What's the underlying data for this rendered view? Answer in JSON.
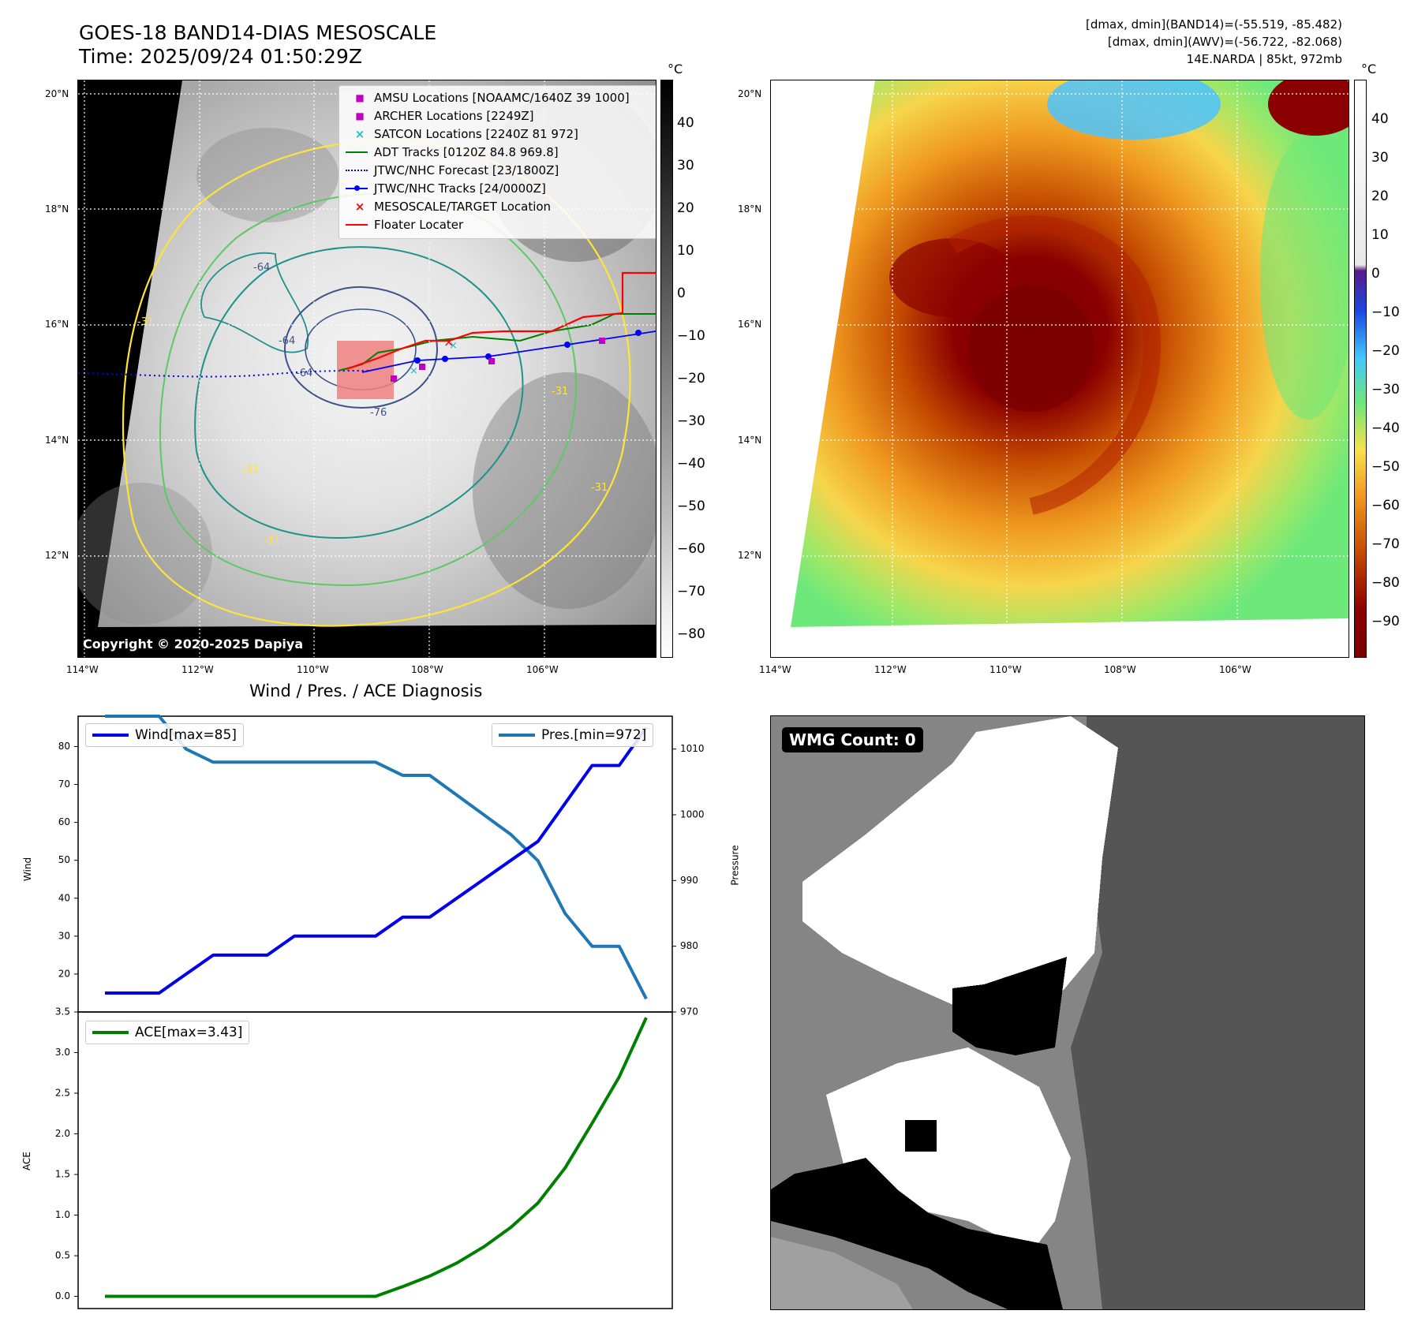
{
  "header": {
    "title": "GOES-18 BAND14-DIAS MESOSCALE",
    "time": "Time: 2025/09/24 01:50:29Z",
    "info": [
      "[dmax, dmin](BAND14)=(-55.519, -85.482)",
      "[dmax, dmin](AWV)=(-56.722, -82.068)",
      "14E.NARDA | 85kt, 972mb"
    ]
  },
  "map_left": {
    "legend": [
      {
        "label": "AMSU Locations [NOAAMC/1640Z 39 1000]",
        "marker": "square",
        "color": "#c000c0"
      },
      {
        "label": "ARCHER Locations [2249Z]",
        "marker": "square",
        "color": "#c000c0"
      },
      {
        "label": "SATCON Locations [2240Z 81 972]",
        "marker": "x",
        "color": "#17becf"
      },
      {
        "label": "ADT Tracks [0120Z 84.8 969.8]",
        "marker": "line",
        "color": "#008000"
      },
      {
        "label": "JTWC/NHC Forecast [23/1800Z]",
        "marker": "dotted",
        "color": "#0000ff"
      },
      {
        "label": "JTWC/NHC Tracks [24/0000Z]",
        "marker": "line-dot",
        "color": "#0000ff"
      },
      {
        "label": "MESOSCALE/TARGET Location",
        "marker": "x",
        "color": "#ff0000"
      },
      {
        "label": "Floater Locater",
        "marker": "line",
        "color": "#ff0000"
      }
    ],
    "copyright": "Copyright © 2020-2025 Dapiya",
    "contour_labels": [
      "-64",
      "-64",
      "-64",
      "-76",
      "-31",
      "-31",
      "-31",
      "-31",
      "-31"
    ],
    "colorbar": {
      "unit": "°C",
      "ticks": [
        "40",
        "30",
        "20",
        "10",
        "0",
        "−10",
        "−20",
        "−30",
        "−40",
        "−50",
        "−60",
        "−70",
        "−80"
      ]
    }
  },
  "map_right": {
    "colorbar": {
      "unit": "°C",
      "ticks": [
        "40",
        "30",
        "20",
        "10",
        "0",
        "−10",
        "−20",
        "−30",
        "−40",
        "−50",
        "−60",
        "−70",
        "−80",
        "−90"
      ]
    }
  },
  "map_axes": {
    "lat_ticks": [
      "20°N",
      "18°N",
      "16°N",
      "14°N",
      "12°N"
    ],
    "lon_ticks": [
      "114°W",
      "112°W",
      "110°W",
      "108°W",
      "106°W"
    ]
  },
  "colors": {
    "wind": "#0000ee",
    "pressure": "#1f77b4",
    "ace": "#008000",
    "contour_yellow": "#ffe33a",
    "contour_green": "#5dc963",
    "contour_teal": "#21918c",
    "contour_navy": "#3b528b"
  },
  "chart_data": [
    {
      "type": "line",
      "title": "Wind / Pres. / ACE Diagnosis",
      "ylabel": "Wind",
      "ylim": [
        10,
        88
      ],
      "yticks": [
        "20",
        "30",
        "40",
        "50",
        "60",
        "70",
        "80"
      ],
      "legend": "top-left",
      "series": [
        {
          "name": "Wind[max=85]",
          "axis": "left",
          "values": [
            15,
            15,
            15,
            20,
            25,
            25,
            25,
            30,
            30,
            30,
            30,
            35,
            35,
            40,
            45,
            50,
            55,
            65,
            75,
            75,
            85
          ]
        },
        {
          "name": "Pres.[min=972]",
          "axis": "right",
          "ylabel": "Pressure",
          "ylim": [
            970,
            1015
          ],
          "yticks": [
            "970",
            "980",
            "990",
            "1000",
            "1010"
          ],
          "values": [
            1015,
            1015,
            1015,
            1010,
            1008,
            1008,
            1008,
            1008,
            1008,
            1008,
            1008,
            1006,
            1006,
            1003,
            1000,
            997,
            993,
            985,
            980,
            980,
            972
          ]
        }
      ]
    },
    {
      "type": "line",
      "ylabel": "ACE",
      "ylim": [
        -0.15,
        3.5
      ],
      "yticks": [
        "0.0",
        "0.5",
        "1.0",
        "1.5",
        "2.0",
        "2.5",
        "3.0",
        "3.5"
      ],
      "legend": "top-left",
      "series": [
        {
          "name": "ACE[max=3.43]",
          "values": [
            0,
            0,
            0,
            0,
            0,
            0,
            0,
            0,
            0,
            0,
            0,
            0.12,
            0.25,
            0.41,
            0.61,
            0.85,
            1.15,
            1.58,
            2.13,
            2.7,
            3.43
          ]
        }
      ]
    }
  ],
  "wmg": {
    "badge": "WMG Count: 0"
  }
}
